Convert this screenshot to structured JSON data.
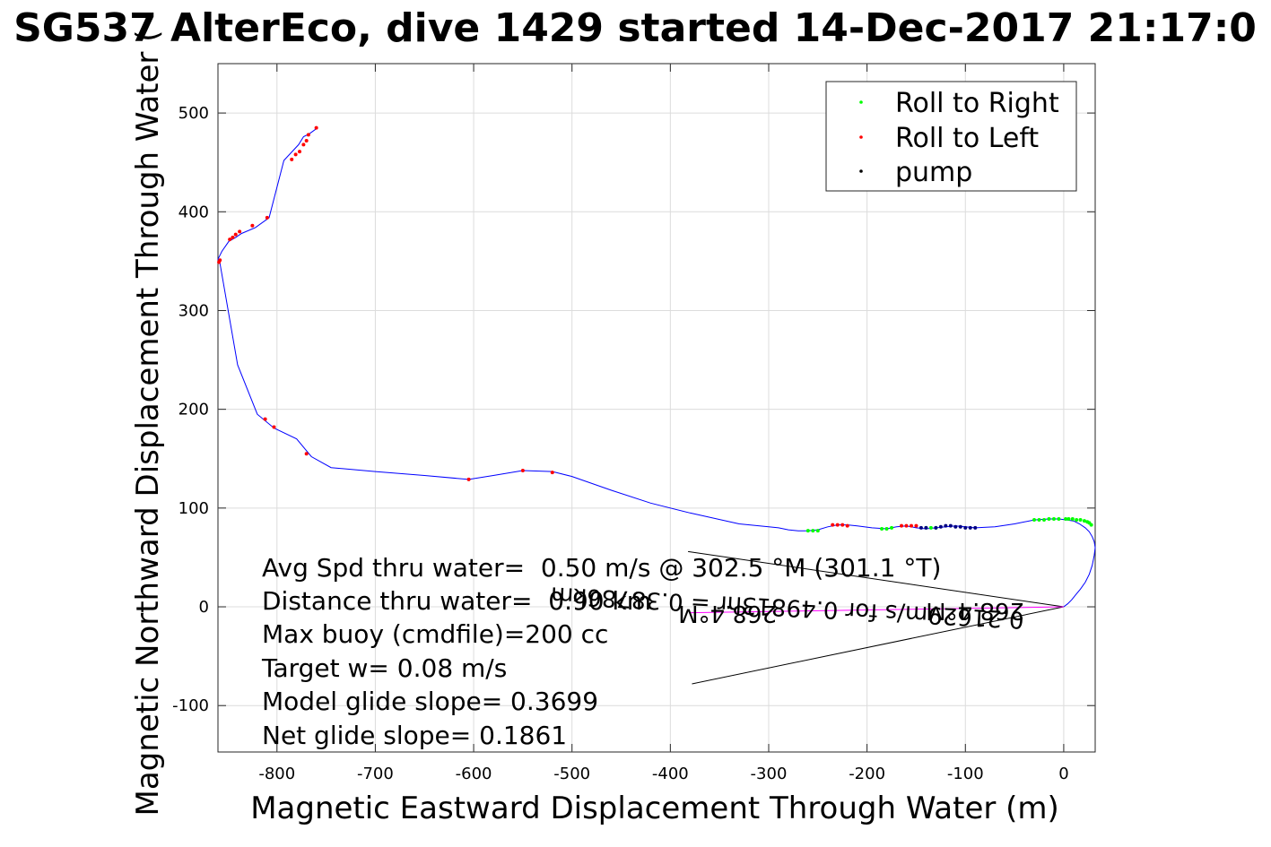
{
  "chart_data": {
    "type": "line",
    "title": "SG537 AlterEco, dive 1429 started 14-Dec-2017 21:17:0",
    "xlabel": "Magnetic Eastward Displacement Through Water (m)",
    "ylabel": "Magnetic Northward Displacement Through Water (",
    "xlim": [
      -860,
      32
    ],
    "ylim": [
      -147,
      550
    ],
    "x_ticks": [
      -800,
      -700,
      -600,
      -500,
      -400,
      -300,
      -200,
      -100,
      0
    ],
    "y_ticks": [
      -100,
      0,
      100,
      200,
      300,
      400,
      500
    ],
    "grid": true,
    "legend_position": "top-right",
    "legend": [
      {
        "label": "Roll to Right",
        "color": "#00ff00"
      },
      {
        "label": "Roll to Left",
        "color": "#ff0000"
      },
      {
        "label": "pump",
        "color": "#000000"
      }
    ],
    "track": {
      "name": "",
      "color": "#0000ff",
      "x": [
        0,
        4,
        8,
        12,
        17,
        22,
        26,
        29,
        31,
        32,
        31,
        29,
        26,
        22,
        16,
        10,
        3,
        -5,
        -15,
        -30,
        -50,
        -70,
        -90,
        -100,
        -110,
        -120,
        -130,
        -140,
        -150,
        -160,
        -170,
        -180,
        -195,
        -210,
        -220,
        -230,
        -240,
        -250,
        -260,
        -270,
        -280,
        -290,
        -300,
        -330,
        -380,
        -420,
        -460,
        -500,
        -520,
        -550,
        -580,
        -605,
        -650,
        -700,
        -745,
        -765,
        -780,
        -803,
        -820,
        -840,
        -858,
        -860,
        -856,
        -849,
        -842,
        -836,
        -822,
        -808,
        -793,
        -778,
        -773,
        -767,
        -760
      ],
      "y": [
        0,
        3,
        7,
        12,
        18,
        25,
        33,
        42,
        52,
        60,
        66,
        71,
        76,
        80,
        84,
        87,
        88,
        89,
        89,
        88,
        84,
        81,
        80,
        81,
        82,
        81,
        80,
        79,
        80,
        82,
        81,
        79,
        80,
        82,
        83,
        83,
        81,
        78,
        77,
        77,
        78,
        80,
        81,
        84,
        95,
        105,
        118,
        132,
        137,
        138,
        133,
        129,
        133,
        137,
        141,
        152,
        170,
        181,
        195,
        245,
        348,
        352,
        360,
        370,
        374,
        378,
        384,
        394,
        452,
        468,
        476,
        479,
        484
      ],
      "roll_right_points": {
        "x": [
          28,
          26,
          24,
          21,
          17,
          13,
          9,
          5,
          2,
          -5,
          -10,
          -15,
          -20,
          -25,
          -30,
          -130,
          -135,
          -140,
          -175,
          -180,
          -185,
          -250,
          -255,
          -260
        ],
        "y": [
          83,
          85,
          86,
          87,
          88,
          88,
          89,
          89,
          89,
          89,
          89,
          89,
          88,
          88,
          88,
          80,
          80,
          80,
          80,
          79,
          79,
          77,
          77,
          77
        ],
        "color": "#00ff00"
      },
      "roll_left_points": {
        "x": [
          -150,
          -155,
          -160,
          -165,
          -220,
          -225,
          -230,
          -235,
          -520,
          -550,
          -605,
          -770,
          -803,
          -812,
          -858,
          -859,
          -848,
          -845,
          -842,
          -838,
          -825,
          -810,
          -785,
          -781,
          -777,
          -773,
          -770,
          -768,
          -760
        ],
        "y": [
          82,
          82,
          82,
          82,
          82,
          83,
          83,
          83,
          136,
          138,
          129,
          155,
          182,
          190,
          351,
          349,
          372,
          374,
          377,
          380,
          386,
          394,
          453,
          458,
          461,
          468,
          472,
          478,
          485
        ],
        "color": "#ff0000"
      },
      "pump_points": {
        "x": [
          -90,
          -95,
          -100,
          -105,
          -110,
          -115,
          -120,
          -125,
          -130,
          -140,
          -145
        ],
        "y": [
          80,
          80,
          80,
          81,
          81,
          82,
          82,
          81,
          80,
          80,
          80
        ],
        "color": "#000080"
      }
    },
    "annotations": {
      "stats": [
        "Avg Spd thru water=  0.50 m/s @ 302.5 °M (301.1 °T)",
        "Distance thru water=  0.90 km",
        "Max buoy (cmdfile)=200 cc",
        "Target w= 0.08 m/s",
        "Model glide slope= 0.3699",
        "Net glide slope= 0.1861"
      ],
      "current_label_1": "0.21629m/s for 0.49813hr = 0.38786km",
      "current_label_2": "268.4°M",
      "current_label_3": "268.4°M"
    }
  }
}
